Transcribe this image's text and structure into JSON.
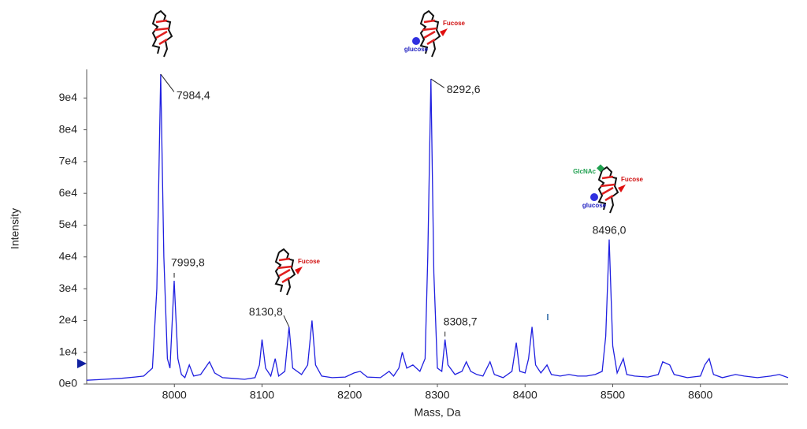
{
  "chart_data": {
    "type": "line",
    "x_label": "Mass, Da",
    "y_label": "Intensity",
    "color": "#2020e0",
    "xlim": [
      7900,
      8700
    ],
    "ylim": [
      0,
      98500
    ],
    "xticks": [
      8000,
      8100,
      8200,
      8300,
      8400,
      8500,
      8600
    ],
    "yticks": [
      {
        "value": 0,
        "label": "0e0"
      },
      {
        "value": 10000,
        "label": "1e4"
      },
      {
        "value": 20000,
        "label": "2e4"
      },
      {
        "value": 30000,
        "label": "3e4"
      },
      {
        "value": 40000,
        "label": "4e4"
      },
      {
        "value": 50000,
        "label": "5e4"
      },
      {
        "value": 60000,
        "label": "6e4"
      },
      {
        "value": 70000,
        "label": "7e4"
      },
      {
        "value": 80000,
        "label": "8e4"
      },
      {
        "value": 90000,
        "label": "9e4"
      }
    ],
    "x": [
      7900,
      7920,
      7940,
      7955,
      7965,
      7975,
      7980,
      7984.4,
      7988,
      7992,
      7995,
      7999.8,
      8004,
      8008,
      8012,
      8017,
      8022,
      8030,
      8040,
      8046,
      8055,
      8065,
      8080,
      8092,
      8097,
      8100,
      8104,
      8110,
      8115,
      8119,
      8126,
      8130.8,
      8135,
      8145,
      8152,
      8157,
      8161,
      8168,
      8180,
      8195,
      8205,
      8212,
      8220,
      8235,
      8245,
      8250,
      8256,
      8260,
      8265,
      8272,
      8280,
      8286,
      8289,
      8292.6,
      8296,
      8300,
      8305,
      8308.7,
      8312,
      8320,
      8328,
      8333,
      8338,
      8345,
      8352,
      8360,
      8365,
      8375,
      8385,
      8390,
      8394,
      8400,
      8404,
      8408,
      8412,
      8418,
      8425,
      8430,
      8440,
      8450,
      8460,
      8470,
      8480,
      8488,
      8492,
      8496.0,
      8500,
      8505,
      8512,
      8516,
      8525,
      8540,
      8552,
      8557,
      8565,
      8570,
      8585,
      8600,
      8605,
      8610,
      8615,
      8625,
      8640,
      8650,
      8665,
      8680,
      8690,
      8700
    ],
    "values": [
      1200,
      1500,
      1800,
      2200,
      2500,
      5000,
      30000,
      97500,
      40000,
      8000,
      5000,
      32500,
      8000,
      3000,
      2000,
      6000,
      2500,
      3000,
      7000,
      3500,
      2000,
      1800,
      1500,
      2000,
      6000,
      14000,
      5000,
      2500,
      8000,
      2500,
      4000,
      18000,
      5000,
      3000,
      6000,
      20000,
      6000,
      2500,
      2000,
      2200,
      3500,
      4000,
      2200,
      2000,
      4000,
      2500,
      5000,
      10000,
      5000,
      6000,
      4000,
      8000,
      40000,
      96000,
      35000,
      5000,
      4000,
      14000,
      6000,
      3000,
      4000,
      7000,
      4000,
      3000,
      2500,
      7000,
      3000,
      2000,
      4000,
      13000,
      4000,
      3500,
      8000,
      18000,
      6000,
      3500,
      6000,
      3000,
      2500,
      3000,
      2500,
      2500,
      3000,
      4000,
      15000,
      45500,
      12000,
      3500,
      8000,
      3000,
      2500,
      2200,
      3000,
      7000,
      6000,
      3000,
      2000,
      2500,
      6000,
      8000,
      3000,
      2000,
      3000,
      2500,
      2000,
      2500,
      3000,
      2000
    ],
    "annotations": [
      {
        "x": 7984.4,
        "y": 97500,
        "label": "7984,4"
      },
      {
        "x": 7999.8,
        "y": 32500,
        "label": "7999,8"
      },
      {
        "x": 8130.8,
        "y": 18000,
        "label": "8130,8"
      },
      {
        "x": 8292.6,
        "y": 96000,
        "label": "8292,6"
      },
      {
        "x": 8308.7,
        "y": 14000,
        "label": "8308,7"
      },
      {
        "x": 8496.0,
        "y": 45500,
        "label": "8496,0"
      }
    ],
    "glycan_labels": {
      "fucose": "Fucose",
      "glucose": "glucose",
      "glcnac": "GlcNAc"
    }
  }
}
